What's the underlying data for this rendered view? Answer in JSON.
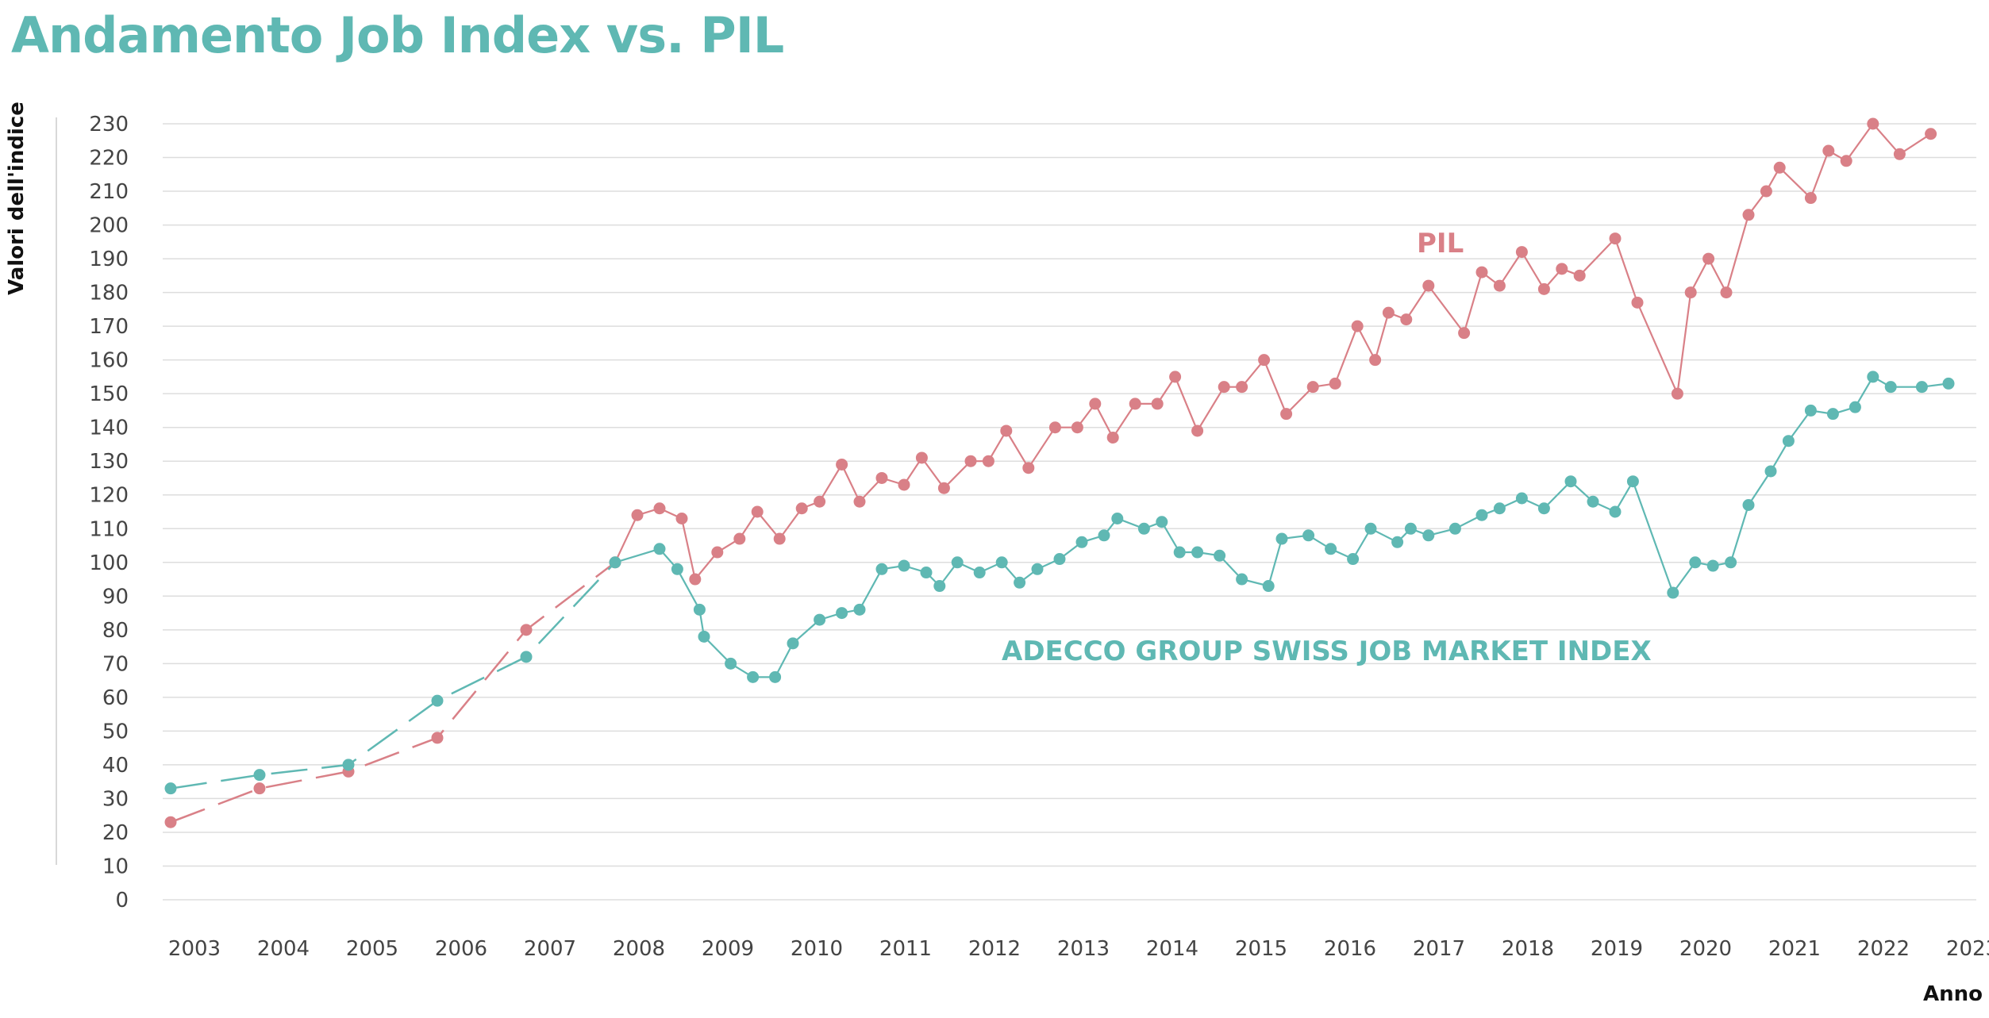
{
  "chart_data": {
    "type": "line",
    "title": "Andamento Job Index vs. PIL",
    "xlabel": "Anno",
    "ylabel": "Valori dell'indice",
    "ylim": [
      0,
      230
    ],
    "yticks": [
      0,
      10,
      20,
      30,
      40,
      50,
      60,
      70,
      80,
      90,
      100,
      110,
      120,
      130,
      140,
      150,
      160,
      170,
      180,
      190,
      200,
      210,
      220,
      230
    ],
    "xlim": [
      2003,
      2023.25
    ],
    "xticks": [
      2003,
      2004,
      2005,
      2006,
      2007,
      2008,
      2009,
      2010,
      2011,
      2012,
      2013,
      2014,
      2015,
      2016,
      2017,
      2018,
      2019,
      2020,
      2021,
      2022,
      2023
    ],
    "grid": true,
    "colors": {
      "pil": "#d98087",
      "index": "#5fb8b3",
      "grid": "#dddddd"
    },
    "series": [
      {
        "name": "PIL",
        "dashed_until": 2007.7,
        "points": [
          [
            2003.0,
            23
          ],
          [
            2004.0,
            33
          ],
          [
            2005.0,
            38
          ],
          [
            2006.0,
            48
          ],
          [
            2007.0,
            80
          ],
          [
            2008.0,
            100
          ],
          [
            2008.25,
            114
          ],
          [
            2008.5,
            116
          ],
          [
            2008.75,
            113
          ],
          [
            2008.9,
            95
          ],
          [
            2009.15,
            103
          ],
          [
            2009.4,
            107
          ],
          [
            2009.6,
            115
          ],
          [
            2009.85,
            107
          ],
          [
            2010.1,
            116
          ],
          [
            2010.3,
            118
          ],
          [
            2010.55,
            129
          ],
          [
            2010.75,
            118
          ],
          [
            2011.0,
            125
          ],
          [
            2011.25,
            123
          ],
          [
            2011.45,
            131
          ],
          [
            2011.7,
            122
          ],
          [
            2012.0,
            130
          ],
          [
            2012.2,
            130
          ],
          [
            2012.4,
            139
          ],
          [
            2012.65,
            128
          ],
          [
            2012.95,
            140
          ],
          [
            2013.2,
            140
          ],
          [
            2013.4,
            147
          ],
          [
            2013.6,
            137
          ],
          [
            2013.85,
            147
          ],
          [
            2014.1,
            147
          ],
          [
            2014.3,
            155
          ],
          [
            2014.55,
            139
          ],
          [
            2014.85,
            152
          ],
          [
            2015.05,
            152
          ],
          [
            2015.3,
            160
          ],
          [
            2015.55,
            144
          ],
          [
            2015.85,
            152
          ],
          [
            2016.1,
            153
          ],
          [
            2016.35,
            170
          ],
          [
            2016.55,
            160
          ],
          [
            2016.7,
            174
          ],
          [
            2016.9,
            172
          ],
          [
            2017.15,
            182
          ],
          [
            2017.55,
            168
          ],
          [
            2017.75,
            186
          ],
          [
            2017.95,
            182
          ],
          [
            2018.2,
            192
          ],
          [
            2018.45,
            181
          ],
          [
            2018.65,
            187
          ],
          [
            2018.85,
            185
          ],
          [
            2019.25,
            196
          ],
          [
            2019.5,
            177
          ],
          [
            2019.95,
            150
          ],
          [
            2020.1,
            180
          ],
          [
            2020.3,
            190
          ],
          [
            2020.5,
            180
          ],
          [
            2020.75,
            203
          ],
          [
            2020.95,
            210
          ],
          [
            2021.1,
            217
          ],
          [
            2021.45,
            208
          ],
          [
            2021.65,
            222
          ],
          [
            2021.85,
            219
          ],
          [
            2022.15,
            230
          ],
          [
            2022.45,
            221
          ],
          [
            2022.8,
            227
          ]
        ]
      },
      {
        "name": "ADECCO GROUP SWISS JOB MARKET INDEX",
        "dashed_until": 2007.7,
        "points": [
          [
            2003.0,
            33
          ],
          [
            2004.0,
            37
          ],
          [
            2005.0,
            40
          ],
          [
            2006.0,
            59
          ],
          [
            2007.0,
            72
          ],
          [
            2008.0,
            100
          ],
          [
            2008.5,
            104
          ],
          [
            2008.7,
            98
          ],
          [
            2008.95,
            86
          ],
          [
            2009.0,
            78
          ],
          [
            2009.3,
            70
          ],
          [
            2009.55,
            66
          ],
          [
            2009.8,
            66
          ],
          [
            2010.0,
            76
          ],
          [
            2010.3,
            83
          ],
          [
            2010.55,
            85
          ],
          [
            2010.75,
            86
          ],
          [
            2011.0,
            98
          ],
          [
            2011.25,
            99
          ],
          [
            2011.5,
            97
          ],
          [
            2011.65,
            93
          ],
          [
            2011.85,
            100
          ],
          [
            2012.1,
            97
          ],
          [
            2012.35,
            100
          ],
          [
            2012.55,
            94
          ],
          [
            2012.75,
            98
          ],
          [
            2013.0,
            101
          ],
          [
            2013.25,
            106
          ],
          [
            2013.5,
            108
          ],
          [
            2013.65,
            113
          ],
          [
            2013.95,
            110
          ],
          [
            2014.15,
            112
          ],
          [
            2014.35,
            103
          ],
          [
            2014.55,
            103
          ],
          [
            2014.8,
            102
          ],
          [
            2015.05,
            95
          ],
          [
            2015.35,
            93
          ],
          [
            2015.5,
            107
          ],
          [
            2015.8,
            108
          ],
          [
            2016.05,
            104
          ],
          [
            2016.3,
            101
          ],
          [
            2016.5,
            110
          ],
          [
            2016.8,
            106
          ],
          [
            2016.95,
            110
          ],
          [
            2017.15,
            108
          ],
          [
            2017.45,
            110
          ],
          [
            2017.75,
            114
          ],
          [
            2017.95,
            116
          ],
          [
            2018.2,
            119
          ],
          [
            2018.45,
            116
          ],
          [
            2018.75,
            124
          ],
          [
            2019.0,
            118
          ],
          [
            2019.25,
            115
          ],
          [
            2019.45,
            124
          ],
          [
            2019.9,
            91
          ],
          [
            2020.15,
            100
          ],
          [
            2020.35,
            99
          ],
          [
            2020.55,
            100
          ],
          [
            2020.75,
            117
          ],
          [
            2021.0,
            127
          ],
          [
            2021.2,
            136
          ],
          [
            2021.45,
            145
          ],
          [
            2021.7,
            144
          ],
          [
            2021.95,
            146
          ],
          [
            2022.15,
            155
          ],
          [
            2022.35,
            152
          ],
          [
            2022.7,
            152
          ],
          [
            2023.0,
            153
          ]
        ]
      }
    ]
  }
}
